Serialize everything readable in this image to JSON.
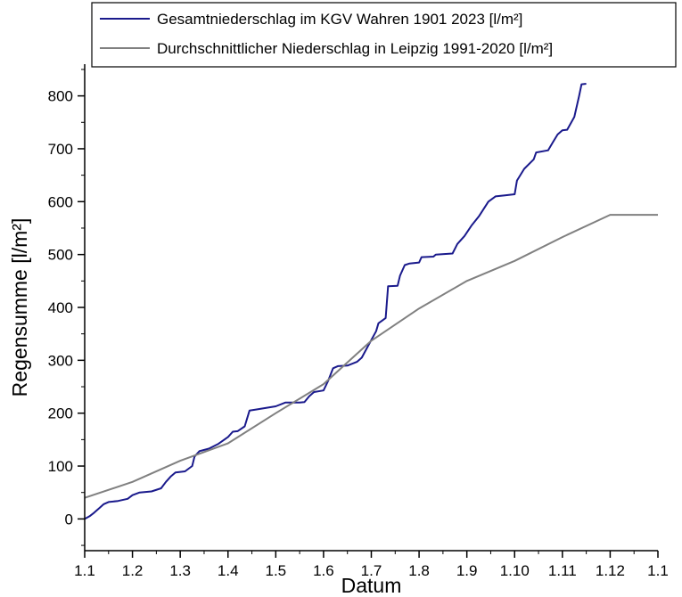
{
  "chart_data": {
    "type": "line",
    "title": "",
    "xlabel": "Datum",
    "ylabel": "Regensumme [l/m²]",
    "x_tick_labels": [
      "1.1",
      "1.2",
      "1.3",
      "1.4",
      "1.5",
      "1.6",
      "1.7",
      "1.8",
      "1.9",
      "1.10",
      "1.11",
      "1.12",
      "1.1"
    ],
    "ylim": [
      -60,
      860
    ],
    "y_ticks": [
      0,
      100,
      200,
      300,
      400,
      500,
      600,
      700,
      800
    ],
    "grid": false,
    "legend_position": "top-right",
    "series": [
      {
        "name": "Gesamtniederschlag im KGV Wahren 1901 2023 [l/m²]",
        "color": "#1a1a8c",
        "points": [
          [
            0,
            0
          ],
          [
            0.1,
            5
          ],
          [
            0.2,
            12
          ],
          [
            0.3,
            20
          ],
          [
            0.4,
            28
          ],
          [
            0.5,
            32
          ],
          [
            0.7,
            34
          ],
          [
            0.9,
            38
          ],
          [
            1.0,
            45
          ],
          [
            1.15,
            50
          ],
          [
            1.4,
            52
          ],
          [
            1.6,
            58
          ],
          [
            1.7,
            70
          ],
          [
            1.8,
            80
          ],
          [
            1.9,
            88
          ],
          [
            2.1,
            90
          ],
          [
            2.25,
            100
          ],
          [
            2.3,
            118
          ],
          [
            2.4,
            128
          ],
          [
            2.6,
            133
          ],
          [
            2.8,
            142
          ],
          [
            3.0,
            155
          ],
          [
            3.1,
            165
          ],
          [
            3.2,
            166
          ],
          [
            3.35,
            175
          ],
          [
            3.45,
            205
          ],
          [
            3.6,
            207
          ],
          [
            3.8,
            210
          ],
          [
            4.0,
            213
          ],
          [
            4.2,
            220
          ],
          [
            4.5,
            220
          ],
          [
            4.6,
            221
          ],
          [
            4.7,
            232
          ],
          [
            4.8,
            240
          ],
          [
            5.0,
            243
          ],
          [
            5.1,
            262
          ],
          [
            5.2,
            285
          ],
          [
            5.3,
            289
          ],
          [
            5.5,
            290
          ],
          [
            5.7,
            297
          ],
          [
            5.8,
            305
          ],
          [
            5.95,
            330
          ],
          [
            6.1,
            355
          ],
          [
            6.15,
            370
          ],
          [
            6.3,
            380
          ],
          [
            6.35,
            440
          ],
          [
            6.55,
            441
          ],
          [
            6.6,
            460
          ],
          [
            6.7,
            480
          ],
          [
            6.8,
            483
          ],
          [
            7.0,
            485
          ],
          [
            7.05,
            495
          ],
          [
            7.3,
            496
          ],
          [
            7.35,
            500
          ],
          [
            7.7,
            502
          ],
          [
            7.8,
            520
          ],
          [
            7.95,
            535
          ],
          [
            8.1,
            555
          ],
          [
            8.25,
            572
          ],
          [
            8.45,
            600
          ],
          [
            8.6,
            610
          ],
          [
            8.8,
            612
          ],
          [
            9.0,
            614
          ],
          [
            9.05,
            640
          ],
          [
            9.2,
            662
          ],
          [
            9.4,
            680
          ],
          [
            9.45,
            693
          ],
          [
            9.7,
            697
          ],
          [
            9.8,
            712
          ],
          [
            9.9,
            727
          ],
          [
            10.0,
            735
          ],
          [
            10.1,
            736
          ],
          [
            10.25,
            760
          ],
          [
            10.35,
            800
          ],
          [
            10.4,
            822
          ],
          [
            10.5,
            823
          ]
        ]
      },
      {
        "name": "Durchschnittlicher Niederschlag in Leipzig 1991-2020 [l/m²]",
        "color": "#808080",
        "points": [
          [
            0,
            40
          ],
          [
            1,
            70
          ],
          [
            2,
            110
          ],
          [
            3,
            143
          ],
          [
            4,
            200
          ],
          [
            5,
            255
          ],
          [
            6,
            337
          ],
          [
            7,
            398
          ],
          [
            8,
            450
          ],
          [
            9,
            488
          ],
          [
            10,
            533
          ],
          [
            11,
            575
          ],
          [
            12,
            575
          ]
        ]
      }
    ]
  }
}
